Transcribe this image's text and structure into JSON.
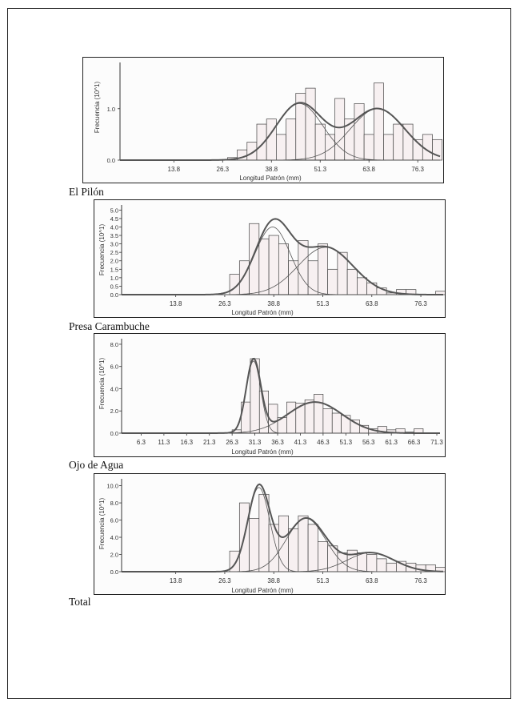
{
  "colors": {
    "frame": "#222222",
    "bar_fill": "#f7f0f1",
    "bar_stroke": "#444444",
    "curve": "#555555",
    "text": "#333333"
  },
  "chart_data": [
    {
      "type": "bar",
      "caption": "El Pilón",
      "xlabel": "Longitud Patrón (mm)",
      "ylabel": "Frecuencia (10^1)",
      "xlim": [
        0,
        82
      ],
      "ylim": [
        0,
        1.9
      ],
      "xticks": [
        "13.8",
        "26.3",
        "38.8",
        "51.3",
        "63.8",
        "76.3"
      ],
      "yticks": [
        "0.0",
        "1.0"
      ],
      "bin_width": 2.5,
      "bins": [
        {
          "x": 28.8,
          "value": 0.05
        },
        {
          "x": 31.3,
          "value": 0.2
        },
        {
          "x": 33.8,
          "value": 0.35
        },
        {
          "x": 36.3,
          "value": 0.7
        },
        {
          "x": 38.8,
          "value": 0.8
        },
        {
          "x": 41.3,
          "value": 0.5
        },
        {
          "x": 43.8,
          "value": 0.8
        },
        {
          "x": 46.3,
          "value": 1.3
        },
        {
          "x": 48.8,
          "value": 1.4
        },
        {
          "x": 51.3,
          "value": 0.7
        },
        {
          "x": 53.8,
          "value": 0.5
        },
        {
          "x": 56.3,
          "value": 1.2
        },
        {
          "x": 58.8,
          "value": 0.8
        },
        {
          "x": 61.3,
          "value": 1.1
        },
        {
          "x": 63.8,
          "value": 0.5
        },
        {
          "x": 66.3,
          "value": 1.5
        },
        {
          "x": 68.8,
          "value": 0.5
        },
        {
          "x": 71.3,
          "value": 0.7
        },
        {
          "x": 73.8,
          "value": 0.7
        },
        {
          "x": 76.3,
          "value": 0.4
        },
        {
          "x": 78.8,
          "value": 0.5
        },
        {
          "x": 81.3,
          "value": 0.4
        }
      ],
      "components": [
        {
          "mean": 46.0,
          "sd": 6.0,
          "peak": 1.1
        },
        {
          "mean": 66.0,
          "sd": 7.0,
          "peak": 1.0
        }
      ]
    },
    {
      "type": "bar",
      "caption": "Presa Carambuche",
      "xlabel": "Longitud Patrón (mm)",
      "ylabel": "Frecuencia (10^1)",
      "xlim": [
        0,
        82
      ],
      "ylim": [
        0,
        5.3
      ],
      "xticks": [
        "13.8",
        "26.3",
        "38.8",
        "51.3",
        "63.8",
        "76.3"
      ],
      "yticks": [
        "0.0",
        "0.5",
        "1.0",
        "1.5",
        "2.0",
        "2.5",
        "3.0",
        "3.5",
        "4.0",
        "4.5",
        "5.0"
      ],
      "bin_width": 2.5,
      "bins": [
        {
          "x": 28.8,
          "value": 1.2
        },
        {
          "x": 31.3,
          "value": 2.0
        },
        {
          "x": 33.8,
          "value": 4.2
        },
        {
          "x": 36.3,
          "value": 3.3
        },
        {
          "x": 38.8,
          "value": 3.5
        },
        {
          "x": 41.3,
          "value": 3.0
        },
        {
          "x": 43.8,
          "value": 2.0
        },
        {
          "x": 46.3,
          "value": 3.2
        },
        {
          "x": 48.8,
          "value": 2.0
        },
        {
          "x": 51.3,
          "value": 3.0
        },
        {
          "x": 53.8,
          "value": 1.5
        },
        {
          "x": 56.3,
          "value": 2.5
        },
        {
          "x": 58.8,
          "value": 1.5
        },
        {
          "x": 61.3,
          "value": 1.0
        },
        {
          "x": 63.8,
          "value": 0.7
        },
        {
          "x": 66.3,
          "value": 0.4
        },
        {
          "x": 68.8,
          "value": 0.1
        },
        {
          "x": 71.3,
          "value": 0.3
        },
        {
          "x": 73.8,
          "value": 0.3
        },
        {
          "x": 81.3,
          "value": 0.2
        }
      ],
      "components": [
        {
          "mean": 38.5,
          "sd": 4.5,
          "peak": 4.0
        },
        {
          "mean": 52.0,
          "sd": 7.0,
          "peak": 2.8
        }
      ]
    },
    {
      "type": "bar",
      "caption": "Ojo de Agua",
      "xlabel": "Longitud Patrón (mm)",
      "ylabel": "Frecuencia (10^1)",
      "xlim": [
        2,
        72
      ],
      "ylim": [
        0,
        8.5
      ],
      "xticks": [
        "6.3",
        "11.3",
        "16.3",
        "21.3",
        "26.3",
        "31.3",
        "36.3",
        "41.3",
        "46.3",
        "51.3",
        "56.3",
        "61.3",
        "66.3",
        "71.3"
      ],
      "yticks": [
        "0.0",
        "2.0",
        "4.0",
        "6.0",
        "8.0"
      ],
      "bin_width": 2.0,
      "bins": [
        {
          "x": 27.3,
          "value": 0.3
        },
        {
          "x": 29.3,
          "value": 2.8
        },
        {
          "x": 31.3,
          "value": 6.7
        },
        {
          "x": 33.3,
          "value": 3.8
        },
        {
          "x": 35.3,
          "value": 2.6
        },
        {
          "x": 37.3,
          "value": 1.4
        },
        {
          "x": 39.3,
          "value": 2.8
        },
        {
          "x": 41.3,
          "value": 2.7
        },
        {
          "x": 43.3,
          "value": 3.0
        },
        {
          "x": 45.3,
          "value": 3.5
        },
        {
          "x": 47.3,
          "value": 2.2
        },
        {
          "x": 49.3,
          "value": 1.8
        },
        {
          "x": 51.3,
          "value": 1.6
        },
        {
          "x": 53.3,
          "value": 1.2
        },
        {
          "x": 55.3,
          "value": 0.7
        },
        {
          "x": 57.3,
          "value": 0.4
        },
        {
          "x": 59.3,
          "value": 0.6
        },
        {
          "x": 61.3,
          "value": 0.3
        },
        {
          "x": 63.3,
          "value": 0.4
        },
        {
          "x": 65.3,
          "value": 0.1
        },
        {
          "x": 67.3,
          "value": 0.4
        }
      ],
      "components": [
        {
          "mean": 31.0,
          "sd": 1.6,
          "peak": 6.5
        },
        {
          "mean": 44.5,
          "sd": 6.0,
          "peak": 2.8
        }
      ]
    },
    {
      "type": "bar",
      "caption": "Total",
      "xlabel": "Longitud Patrón (mm)",
      "ylabel": "Frecuencia (10^1)",
      "xlim": [
        0,
        82
      ],
      "ylim": [
        0,
        10.8
      ],
      "xticks": [
        "13.8",
        "26.3",
        "38.8",
        "51.3",
        "63.8",
        "76.3"
      ],
      "yticks": [
        "0.0",
        "2.0",
        "4.0",
        "6.0",
        "8.0",
        "10.0"
      ],
      "bin_width": 2.5,
      "bins": [
        {
          "x": 28.8,
          "value": 2.4
        },
        {
          "x": 31.3,
          "value": 8.0
        },
        {
          "x": 33.8,
          "value": 6.2
        },
        {
          "x": 36.3,
          "value": 9.0
        },
        {
          "x": 38.8,
          "value": 5.5
        },
        {
          "x": 41.3,
          "value": 6.5
        },
        {
          "x": 43.8,
          "value": 5.0
        },
        {
          "x": 46.3,
          "value": 6.5
        },
        {
          "x": 48.8,
          "value": 5.5
        },
        {
          "x": 51.3,
          "value": 3.5
        },
        {
          "x": 53.8,
          "value": 3.0
        },
        {
          "x": 56.3,
          "value": 2.2
        },
        {
          "x": 58.8,
          "value": 2.5
        },
        {
          "x": 61.3,
          "value": 2.2
        },
        {
          "x": 63.8,
          "value": 2.0
        },
        {
          "x": 66.3,
          "value": 1.5
        },
        {
          "x": 68.8,
          "value": 1.0
        },
        {
          "x": 71.3,
          "value": 1.2
        },
        {
          "x": 73.8,
          "value": 1.0
        },
        {
          "x": 76.3,
          "value": 0.8
        },
        {
          "x": 78.8,
          "value": 0.8
        },
        {
          "x": 81.3,
          "value": 0.5
        }
      ],
      "components": [
        {
          "mean": 35.0,
          "sd": 2.8,
          "peak": 9.8
        },
        {
          "mean": 47.0,
          "sd": 5.0,
          "peak": 6.2
        },
        {
          "mean": 63.5,
          "sd": 6.0,
          "peak": 2.2
        }
      ]
    }
  ]
}
